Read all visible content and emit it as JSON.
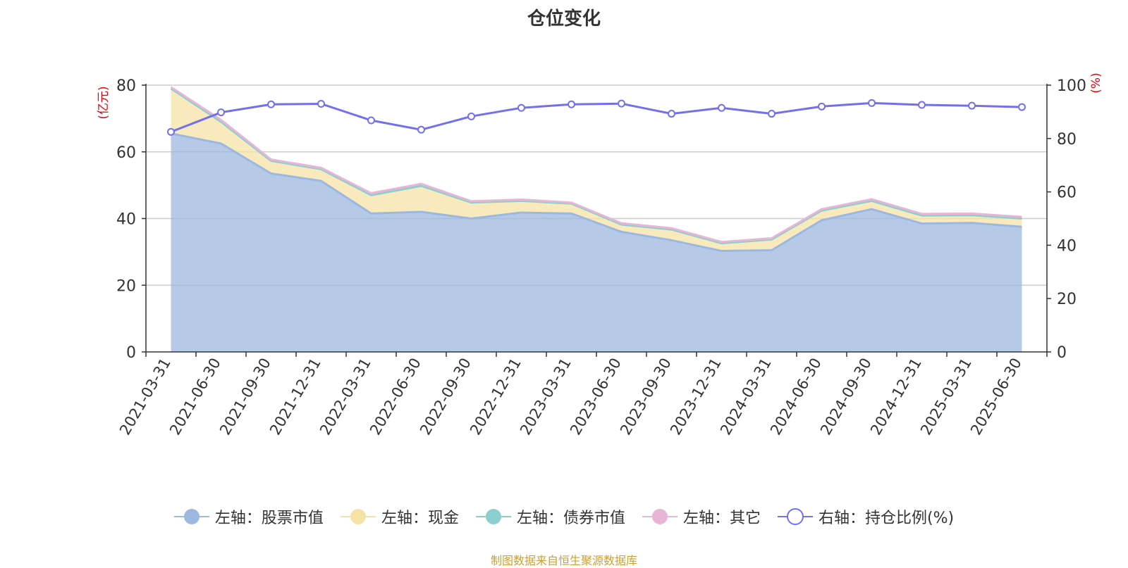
{
  "chart_data": {
    "type": "area",
    "title": "仓位变化",
    "left_axis_label": "(亿元)",
    "right_axis_label": "(%)",
    "x": [
      "2021-03-31",
      "2021-06-30",
      "2021-09-30",
      "2021-12-31",
      "2022-03-31",
      "2022-06-30",
      "2022-09-30",
      "2022-12-31",
      "2023-03-31",
      "2023-06-30",
      "2023-09-30",
      "2023-12-31",
      "2024-03-31",
      "2024-06-30",
      "2024-09-30",
      "2024-12-31",
      "2025-03-31",
      "2025-06-30"
    ],
    "left_ylim": [
      0,
      80
    ],
    "left_yticks": [
      0,
      20,
      40,
      60,
      80
    ],
    "right_ylim": [
      0,
      100
    ],
    "right_yticks": [
      0,
      20,
      40,
      60,
      80,
      100
    ],
    "stacked": true,
    "grid": true,
    "legend_position": "bottom",
    "series": [
      {
        "name": "左轴：股票市值",
        "axis": "left",
        "type": "area",
        "color": "#9db8e0",
        "values": [
          65.5,
          62.5,
          53.5,
          51.3,
          41.5,
          42.0,
          40.0,
          41.8,
          41.5,
          36.0,
          33.5,
          30.3,
          30.5,
          39.5,
          42.8,
          38.5,
          38.7,
          37.5
        ]
      },
      {
        "name": "左轴：现金",
        "axis": "left",
        "type": "area",
        "color": "#f5e3a6",
        "values": [
          13.5,
          6.5,
          3.8,
          3.5,
          5.5,
          7.8,
          4.8,
          3.5,
          3.0,
          2.2,
          3.2,
          2.3,
          3.2,
          2.9,
          2.5,
          2.4,
          2.3,
          2.5
        ]
      },
      {
        "name": "左轴：债券市值",
        "axis": "left",
        "type": "area",
        "color": "#8ccfcf",
        "values": [
          0,
          0,
          0,
          0,
          0,
          0,
          0,
          0,
          0,
          0,
          0,
          0,
          0,
          0,
          0,
          0,
          0,
          0
        ]
      },
      {
        "name": "左轴：其它",
        "axis": "left",
        "type": "area",
        "color": "#e7b6d6",
        "values": [
          0.4,
          0.6,
          0.4,
          0.4,
          0.6,
          0.6,
          0.4,
          0.4,
          0.3,
          0.4,
          0.4,
          0.4,
          0.4,
          0.4,
          0.5,
          0.5,
          0.5,
          0.5
        ]
      },
      {
        "name": "右轴：持仓比例(%)",
        "axis": "right",
        "type": "line",
        "color": "#7370ee",
        "values": [
          82.5,
          89.8,
          92.8,
          93.0,
          86.8,
          83.3,
          88.3,
          91.5,
          92.8,
          93.1,
          89.3,
          91.5,
          89.3,
          92.0,
          93.3,
          92.6,
          92.3,
          91.8
        ]
      }
    ]
  },
  "source_note": "制图数据来自恒生聚源数据库"
}
